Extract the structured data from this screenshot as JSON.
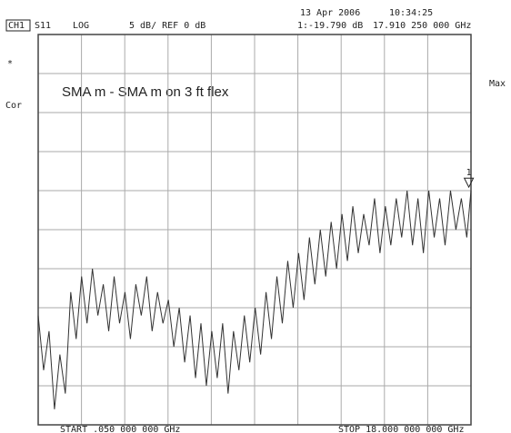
{
  "chart_data": {
    "type": "line",
    "channel": "CH1",
    "parameter": "S11",
    "format": "LOG",
    "scale_text": "5 dB/ REF 0 dB",
    "date": "13 Apr 2006",
    "time": "10:34:25",
    "marker_readout": "1:-19.790 dB",
    "marker_frequency": "17.910 250 000 GHz",
    "status_star": "*",
    "status_cor": "Cor",
    "status_max": "Max",
    "annotation": "SMA m - SMA m on 3 ft flex",
    "start_label": "START .050 000 000 GHz",
    "stop_label": "STOP 18.000 000 000 GHz",
    "marker": {
      "label": "1",
      "x": 17.91025,
      "value": -19.79
    },
    "xlim": [
      0.05,
      18
    ],
    "ylim": [
      -50,
      0
    ],
    "xticks": [
      0.05,
      1.845,
      3.64,
      5.435,
      7.23,
      9.025,
      10.82,
      12.615,
      14.41,
      16.205,
      18
    ],
    "yticks": [
      -50,
      -45,
      -40,
      -35,
      -30,
      -25,
      -20,
      -15,
      -10,
      -5,
      0
    ],
    "grid": true,
    "color": "#333333",
    "x": [
      0.05,
      0.275,
      0.5,
      0.725,
      0.95,
      1.175,
      1.4,
      1.625,
      1.85,
      2.075,
      2.3,
      2.525,
      2.75,
      2.975,
      3.2,
      3.425,
      3.65,
      3.875,
      4.1,
      4.325,
      4.55,
      4.775,
      5,
      5.225,
      5.45,
      5.675,
      5.9,
      6.125,
      6.35,
      6.575,
      6.8,
      7.025,
      7.25,
      7.475,
      7.7,
      7.925,
      8.15,
      8.375,
      8.6,
      8.825,
      9.05,
      9.275,
      9.5,
      9.725,
      9.95,
      10.175,
      10.4,
      10.625,
      10.85,
      11.075,
      11.3,
      11.525,
      11.75,
      11.975,
      12.2,
      12.425,
      12.65,
      12.875,
      13.1,
      13.325,
      13.55,
      13.775,
      14,
      14.225,
      14.45,
      14.675,
      14.9,
      15.125,
      15.35,
      15.575,
      15.8,
      16.025,
      16.25,
      16.475,
      16.7,
      16.925,
      17.15,
      17.375,
      17.6,
      17.825,
      18
    ],
    "values": [
      -36,
      -43,
      -38,
      -48,
      -41,
      -46,
      -33,
      -39,
      -31,
      -37,
      -30,
      -36,
      -32,
      -38,
      -31,
      -37,
      -33,
      -39,
      -32,
      -36,
      -31,
      -38,
      -33,
      -37,
      -34,
      -40,
      -35,
      -42,
      -36,
      -44,
      -37,
      -45,
      -38,
      -44,
      -37,
      -46,
      -38,
      -43,
      -36,
      -42,
      -35,
      -41,
      -33,
      -39,
      -31,
      -37,
      -29,
      -35,
      -28,
      -34,
      -26,
      -32,
      -25,
      -31,
      -24,
      -30,
      -23,
      -29,
      -22,
      -28,
      -23,
      -27,
      -21,
      -28,
      -22,
      -27,
      -21,
      -26,
      -20,
      -27,
      -21,
      -28,
      -20,
      -26,
      -21,
      -27,
      -20,
      -25,
      -21,
      -26,
      -20
    ]
  }
}
